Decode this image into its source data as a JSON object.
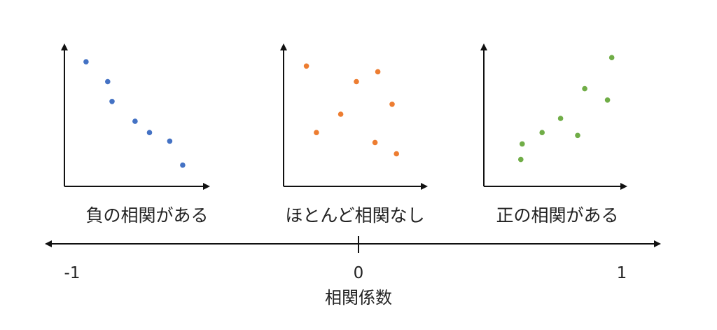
{
  "panels": [
    {
      "label": "負の相関がある",
      "color": "#4472c4",
      "points": [
        [
          0.15,
          0.88
        ],
        [
          0.3,
          0.74
        ],
        [
          0.33,
          0.6
        ],
        [
          0.49,
          0.46
        ],
        [
          0.59,
          0.38
        ],
        [
          0.73,
          0.32
        ],
        [
          0.82,
          0.15
        ]
      ]
    },
    {
      "label": "ほとんど相関なし",
      "color": "#ed7d31",
      "points": [
        [
          0.16,
          0.85
        ],
        [
          0.23,
          0.38
        ],
        [
          0.4,
          0.51
        ],
        [
          0.51,
          0.74
        ],
        [
          0.66,
          0.81
        ],
        [
          0.76,
          0.58
        ],
        [
          0.64,
          0.31
        ],
        [
          0.79,
          0.23
        ]
      ]
    },
    {
      "label": "正の相関がある",
      "color": "#70ad47",
      "points": [
        [
          0.26,
          0.19
        ],
        [
          0.27,
          0.3
        ],
        [
          0.41,
          0.38
        ],
        [
          0.54,
          0.48
        ],
        [
          0.66,
          0.36
        ],
        [
          0.71,
          0.69
        ],
        [
          0.87,
          0.61
        ],
        [
          0.9,
          0.91
        ]
      ]
    }
  ],
  "scale": {
    "title": "相関係数",
    "ticks": [
      {
        "value": -1,
        "label": "-1"
      },
      {
        "value": 0,
        "label": "0"
      },
      {
        "value": 1,
        "label": "1"
      }
    ]
  }
}
